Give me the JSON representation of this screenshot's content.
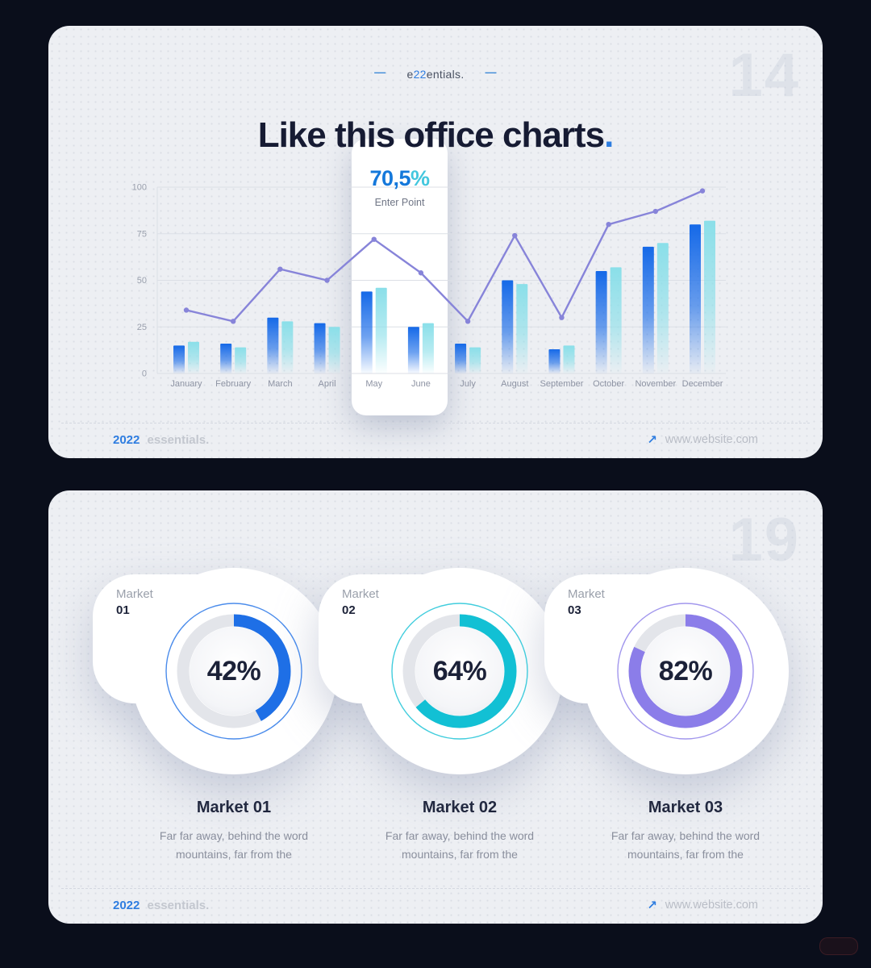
{
  "slide1": {
    "page_number": "14",
    "brand": {
      "dash": "—",
      "prefix": "e",
      "highlight": "22",
      "suffix": "entials."
    },
    "title": {
      "text": "Like this office charts",
      "period": "."
    },
    "callout": {
      "value": "70,5",
      "unit": "%",
      "label": "Enter Point"
    }
  },
  "slide2": {
    "page_number": "19",
    "markets": [
      {
        "label_top": "Market",
        "label_num": "01",
        "percent": "42%",
        "value": 42,
        "accent": "#1e6fe6",
        "title": "Market 01",
        "description": "Far far away, behind the word mountains, far from the"
      },
      {
        "label_top": "Market",
        "label_num": "02",
        "percent": "64%",
        "value": 64,
        "accent": "#12c0d4",
        "title": "Market 02",
        "description": "Far far away, behind the word mountains, far from the"
      },
      {
        "label_top": "Market",
        "label_num": "03",
        "percent": "82%",
        "value": 82,
        "accent": "#8b7de9",
        "title": "Market 03",
        "description": "Far far away, behind the word mountains, far from the"
      }
    ]
  },
  "footer": {
    "year": "2022",
    "brand": "essentials.",
    "arrow": "↗",
    "website": "www.website.com"
  },
  "colors": {
    "bar1_top": "#1569e8",
    "bar2_top": "#8adfe9",
    "line": "#8784d9",
    "grid": "#dcdfe6",
    "axis_text": "#9aa0ad",
    "donut_track": "#e3e5ea"
  },
  "chart_data": [
    {
      "type": "combo_bar_line",
      "title": "Like this office charts.",
      "categories": [
        "January",
        "February",
        "March",
        "April",
        "May",
        "June",
        "July",
        "August",
        "September",
        "October",
        "November",
        "December"
      ],
      "series": [
        {
          "name": "bar-series-1",
          "type": "bar",
          "color": "#1569e8",
          "values": [
            15,
            16,
            30,
            27,
            44,
            25,
            16,
            50,
            13,
            55,
            68,
            80
          ]
        },
        {
          "name": "bar-series-2",
          "type": "bar",
          "color": "#8adfe9",
          "values": [
            17,
            14,
            28,
            25,
            46,
            27,
            14,
            48,
            15,
            57,
            70,
            82
          ]
        },
        {
          "name": "line-series",
          "type": "line",
          "color": "#8784d9",
          "values": [
            34,
            28,
            56,
            50,
            72,
            54,
            28,
            74,
            30,
            80,
            87,
            98
          ]
        }
      ],
      "yticks": [
        0,
        25,
        50,
        75,
        100
      ],
      "ylim": [
        0,
        100
      ],
      "grid": true,
      "legend": false,
      "annotation": {
        "value": "70,5",
        "unit": "%",
        "label": "Enter Point",
        "anchor_month": "May"
      }
    },
    {
      "type": "pie",
      "subtype": "donut_gauges",
      "unit": "%",
      "items": [
        {
          "label": "Market 01",
          "value": 42,
          "color": "#1e6fe6"
        },
        {
          "label": "Market 02",
          "value": 64,
          "color": "#12c0d4"
        },
        {
          "label": "Market 03",
          "value": 82,
          "color": "#8b7de9"
        }
      ]
    }
  ]
}
